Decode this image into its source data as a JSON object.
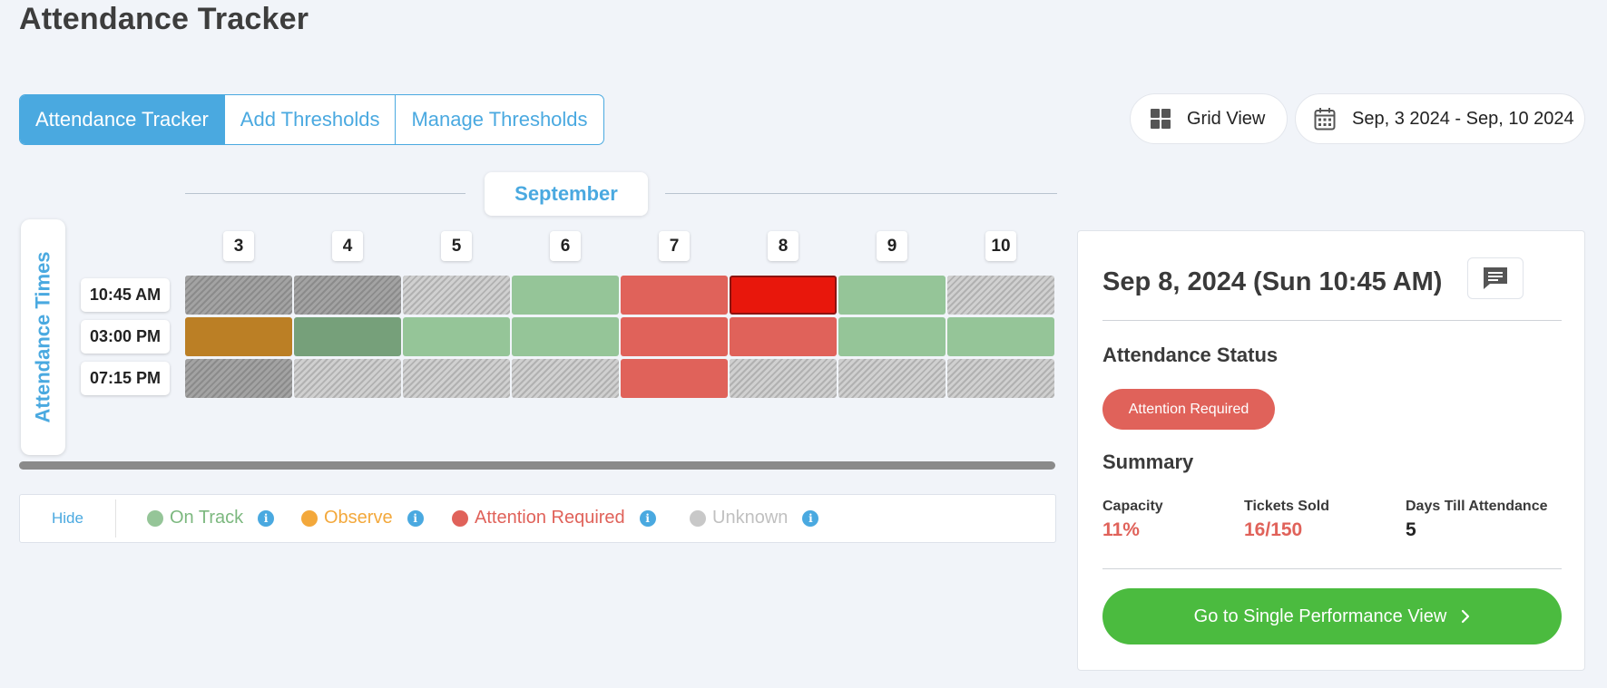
{
  "page": {
    "title": "Attendance Tracker"
  },
  "tabs": [
    {
      "label": "Attendance Tracker",
      "active": true
    },
    {
      "label": "Add Thresholds",
      "active": false
    },
    {
      "label": "Manage Thresholds",
      "active": false
    }
  ],
  "toolbar": {
    "grid_view_label": "Grid View",
    "date_range_label": "Sep, 3 2024 - Sep, 10 2024"
  },
  "grid": {
    "month": "September",
    "vertical_label": "Attendance Times",
    "days": [
      "3",
      "4",
      "5",
      "6",
      "7",
      "8",
      "9",
      "10"
    ],
    "times": [
      "10:45 AM",
      "03:00 PM",
      "07:15 PM"
    ],
    "cells": [
      [
        "unknown-past",
        "unknown-past",
        "unknown",
        "on-track",
        "attention",
        "attention-selected",
        "on-track",
        "unknown"
      ],
      [
        "observe-past",
        "on-track-past",
        "on-track",
        "on-track",
        "attention",
        "attention",
        "on-track",
        "on-track"
      ],
      [
        "unknown-past",
        "unknown",
        "unknown",
        "unknown",
        "attention",
        "unknown",
        "unknown",
        "unknown"
      ]
    ]
  },
  "legend": {
    "hide_label": "Hide",
    "items": [
      {
        "label": "On Track",
        "color": "#95c598"
      },
      {
        "label": "Observe",
        "color": "#f3a83b"
      },
      {
        "label": "Attention Required",
        "color": "#e0625a"
      },
      {
        "label": "Unknown",
        "color": "#c8c8c8"
      }
    ]
  },
  "detail": {
    "title": "Sep 8, 2024 (Sun 10:45 AM)",
    "status_heading": "Attendance Status",
    "status_badge": "Attention Required",
    "summary_heading": "Summary",
    "stats": [
      {
        "label": "Capacity",
        "value": "11%",
        "color": "#e0625a"
      },
      {
        "label": "Tickets Sold",
        "value": "16/150",
        "color": "#e0625a"
      },
      {
        "label": "Days Till Attendance",
        "value": "5",
        "color": "#222222"
      }
    ],
    "action_label": "Go to Single Performance View"
  }
}
